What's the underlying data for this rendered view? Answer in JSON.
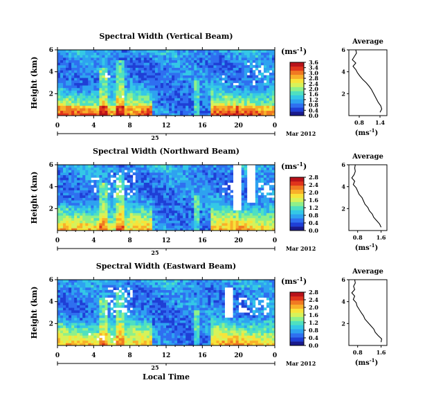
{
  "shared": {
    "xlabel": "Local Time",
    "ylabel": "Height (km)",
    "date_label": "Mar 2012",
    "day_label": "25",
    "unit_label": "(ms",
    "unit_sup": "-1",
    "unit_close": ")",
    "avg_title": "Average",
    "colors": [
      "#1a1a8c",
      "#1f3fd6",
      "#2f6ff0",
      "#2ea2f0",
      "#34c8e6",
      "#4fe0c0",
      "#8ff08a",
      "#d6f25a",
      "#f7e43a",
      "#f8b02a",
      "#f07a22",
      "#e0341c",
      "#b8121a"
    ]
  },
  "chart_data": [
    {
      "type": "heatmap",
      "title": "Spectral Width (Vertical Beam)",
      "x_ticks": [
        "0",
        "4",
        "8",
        "12",
        "16",
        "20",
        "0"
      ],
      "xlim": [
        0,
        24
      ],
      "y_ticks": [
        "2",
        "4",
        "6"
      ],
      "ylim": [
        0,
        6
      ],
      "colorbar_ticks": [
        "3.6",
        "3.4",
        "3.0",
        "2.8",
        "2.4",
        "2.0",
        "1.6",
        "1.2",
        "0.8",
        "0.4",
        "0.0"
      ],
      "colorbar_range": [
        0,
        3.6
      ],
      "profile": {
        "title": "Average",
        "x_ticks": [
          "0.8",
          "1.4"
        ],
        "xlim": [
          0.5,
          1.6
        ],
        "y_ticks": [
          "2",
          "4",
          "6"
        ],
        "ylim": [
          0,
          6
        ],
        "xlabel": "(ms",
        "height_km": [
          0.3,
          0.6,
          0.9,
          1.2,
          1.5,
          1.8,
          2.1,
          2.4,
          2.7,
          3.0,
          3.3,
          3.6,
          3.9,
          4.2,
          4.5,
          4.8,
          5.1,
          5.4,
          5.7,
          6.0
        ],
        "width": [
          1.4,
          1.45,
          1.42,
          1.35,
          1.3,
          1.25,
          1.2,
          1.15,
          1.08,
          1.0,
          0.9,
          0.82,
          0.75,
          0.7,
          0.62,
          0.7,
          0.6,
          0.66,
          0.72,
          0.7
        ]
      }
    },
    {
      "type": "heatmap",
      "title": "Spectral Width (Northward Beam)",
      "x_ticks": [
        "0",
        "4",
        "8",
        "12",
        "16",
        "20",
        "0"
      ],
      "xlim": [
        0,
        24
      ],
      "y_ticks": [
        "2",
        "4",
        "6"
      ],
      "ylim": [
        0,
        6
      ],
      "colorbar_ticks": [
        "2.8",
        "2.4",
        "2.0",
        "1.6",
        "1.2",
        "0.8",
        "0.4",
        "0.0"
      ],
      "colorbar_range": [
        0,
        2.8
      ],
      "profile": {
        "title": "Average",
        "x_ticks": [
          "0.8",
          "1.6"
        ],
        "xlim": [
          0.5,
          1.8
        ],
        "y_ticks": [
          "2",
          "4",
          "6"
        ],
        "ylim": [
          0,
          6
        ],
        "xlabel": "(ms",
        "height_km": [
          0.3,
          0.6,
          0.9,
          1.2,
          1.5,
          1.8,
          2.1,
          2.4,
          2.7,
          3.0,
          3.3,
          3.6,
          3.9,
          4.2,
          4.5,
          4.8,
          5.1,
          5.4,
          5.7,
          6.0
        ],
        "width": [
          1.6,
          1.55,
          1.45,
          1.35,
          1.3,
          1.2,
          1.15,
          1.05,
          1.0,
          0.95,
          0.85,
          0.8,
          0.75,
          0.65,
          0.7,
          0.6,
          0.68,
          0.72,
          0.7,
          0.72
        ]
      }
    },
    {
      "type": "heatmap",
      "title": "Spectral Width (Eastward Beam)",
      "x_ticks": [
        "0",
        "4",
        "8",
        "12",
        "16",
        "20",
        "0"
      ],
      "xlim": [
        0,
        24
      ],
      "y_ticks": [
        "2",
        "4",
        "6"
      ],
      "ylim": [
        0,
        6
      ],
      "colorbar_ticks": [
        "2.8",
        "2.4",
        "2.0",
        "1.6",
        "1.2",
        "0.8",
        "0.4",
        "0.0"
      ],
      "colorbar_range": [
        0,
        2.8
      ],
      "profile": {
        "title": "Average",
        "x_ticks": [
          "0.8",
          "1.6"
        ],
        "xlim": [
          0.5,
          1.8
        ],
        "y_ticks": [
          "2",
          "4",
          "6"
        ],
        "ylim": [
          0,
          6
        ],
        "xlabel": "(ms",
        "height_km": [
          0.3,
          0.6,
          0.9,
          1.2,
          1.5,
          1.8,
          2.1,
          2.4,
          2.7,
          3.0,
          3.3,
          3.6,
          3.9,
          4.2,
          4.5,
          4.8,
          5.1,
          5.4,
          5.7,
          6.0
        ],
        "width": [
          1.6,
          1.62,
          1.5,
          1.4,
          1.35,
          1.25,
          1.15,
          1.05,
          1.0,
          0.92,
          0.85,
          0.78,
          0.75,
          0.65,
          0.7,
          0.6,
          0.7,
          0.66,
          0.72,
          0.7
        ]
      }
    }
  ]
}
